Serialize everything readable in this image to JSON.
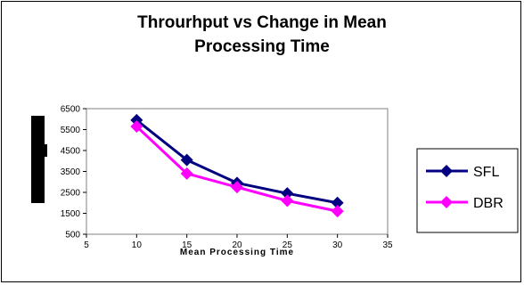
{
  "chart_data": {
    "type": "line",
    "title_line1": "Throurhput vs Change in  Mean",
    "title_line2": "Processing Time",
    "xlabel": "Mean Processing Time",
    "ylabel": "",
    "x_ticks": [
      "5",
      "10",
      "15",
      "20",
      "25",
      "30",
      "35"
    ],
    "y_ticks": [
      "500",
      "1500",
      "2500",
      "3500",
      "4500",
      "5500",
      "6500"
    ],
    "xlim": [
      5,
      35
    ],
    "ylim": [
      500,
      6500
    ],
    "x": [
      10,
      15,
      20,
      25,
      30
    ],
    "series": [
      {
        "name": "SFL",
        "color": "#000080",
        "marker": "diamond",
        "values": [
          5950,
          4050,
          2950,
          2450,
          2000
        ]
      },
      {
        "name": "DBR",
        "color": "#FF00FF",
        "marker": "diamond",
        "values": [
          5650,
          3400,
          2750,
          2100,
          1600
        ]
      }
    ],
    "legend_position": "right",
    "grid": false
  }
}
